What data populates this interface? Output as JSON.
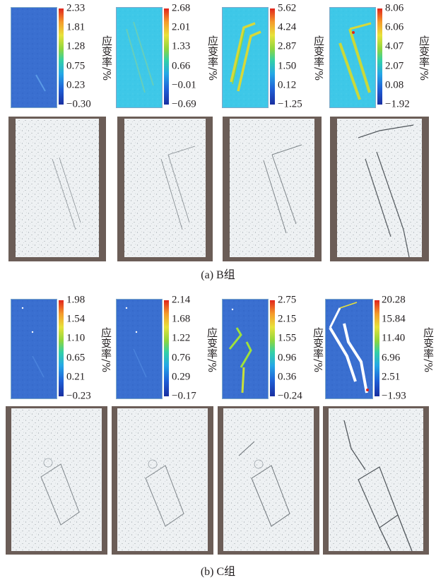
{
  "panels": [
    {
      "id": "B",
      "caption": "(a) B组",
      "maps": [
        {
          "ticks": [
            "2.33",
            "1.81",
            "1.28",
            "0.75",
            "0.23",
            "−0.30"
          ],
          "unit": "应变率/%",
          "tone": "dark-blue"
        },
        {
          "ticks": [
            "2.68",
            "2.01",
            "1.33",
            "0.66",
            "−0.01",
            "−0.69"
          ],
          "unit": "应变率/%",
          "tone": "cyan"
        },
        {
          "ticks": [
            "5.62",
            "4.24",
            "2.87",
            "1.50",
            "0.12",
            "−1.25"
          ],
          "unit": "应变率/%",
          "tone": "cyan-band"
        },
        {
          "ticks": [
            "8.06",
            "6.06",
            "4.07",
            "2.07",
            "0.08",
            "−1.92"
          ],
          "unit": "应变率/%",
          "tone": "cyan-band"
        }
      ]
    },
    {
      "id": "C",
      "caption": "(b) C组",
      "maps": [
        {
          "ticks": [
            "1.98",
            "1.54",
            "1.10",
            "0.65",
            "0.21",
            "−0.23"
          ],
          "unit": "应变率/%",
          "tone": "blue"
        },
        {
          "ticks": [
            "2.14",
            "1.68",
            "1.22",
            "0.76",
            "0.29",
            "−0.17"
          ],
          "unit": "应变率/%",
          "tone": "blue"
        },
        {
          "ticks": [
            "2.75",
            "2.15",
            "1.55",
            "0.96",
            "0.36",
            "−0.24"
          ],
          "unit": "应变率/%",
          "tone": "blue-band"
        },
        {
          "ticks": [
            "20.28",
            "15.84",
            "11.40",
            "6.96",
            "2.51",
            "−1.93"
          ],
          "unit": "应变率/%",
          "tone": "blue-crack"
        }
      ]
    }
  ],
  "colors": {
    "colorbar": [
      "#1a2fa0",
      "#25a7e6",
      "#8fd63d",
      "#e7e23a",
      "#e0241c"
    ],
    "specimen": "#e8ecef",
    "background_dark": "#5b4f4a"
  }
}
